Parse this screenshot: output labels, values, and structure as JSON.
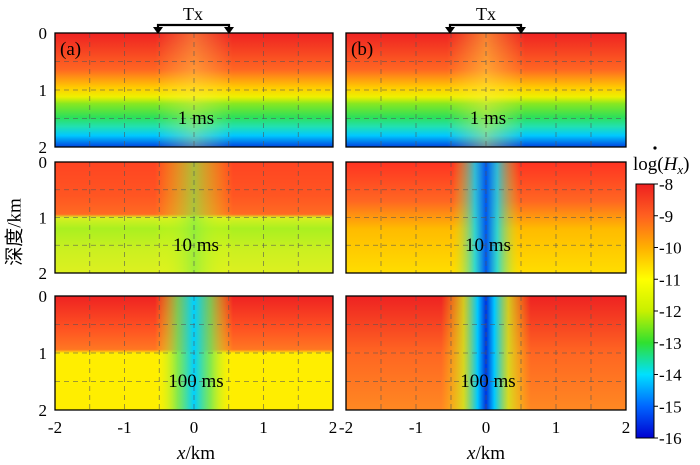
{
  "chart_data": {
    "type": "heatmap",
    "colorbar": {
      "title_prefix": "log(",
      "title_symbol": "H",
      "title_subscript": "x",
      "title_suffix": ")",
      "ticks": [
        "-8",
        "-9",
        "-10",
        "-11",
        "-12",
        "-13",
        "-14",
        "-15",
        "-16"
      ],
      "range": [
        -16,
        -8
      ],
      "colors": [
        "#0000d0",
        "#0066ff",
        "#00e0ff",
        "#30e030",
        "#c8f000",
        "#ffff00",
        "#ffb000",
        "#ff6020",
        "#ee2020"
      ]
    },
    "xlabel_var": "x",
    "xlabel_unit": "/km",
    "ylabel": "深度/km",
    "x_ticks": [
      "-2",
      "-1",
      "0",
      "1",
      "2"
    ],
    "x_range": [
      -2,
      2
    ],
    "y_ticks": [
      "0",
      "1",
      "2"
    ],
    "y_range": [
      0,
      2
    ],
    "transmitter": {
      "label": "Tx",
      "x_range": [
        -0.5,
        0.5
      ]
    },
    "interface_depth_km": 1,
    "columns": [
      {
        "label": "(a)"
      },
      {
        "label": "(b)"
      }
    ],
    "time_labels": [
      "1 ms",
      "10 ms",
      "100 ms"
    ]
  }
}
